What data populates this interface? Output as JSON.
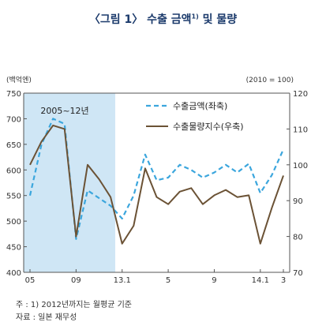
{
  "title": "〈그림 1〉 수출 금액",
  "title_sup": "1)",
  "title_tail": " 및 물량",
  "chart_data": {
    "type": "line",
    "left_unit": "(백억엔)",
    "right_unit": "(2010 = 100)",
    "shaded_label": "2005~12년",
    "x_tick_labels": [
      "05",
      "09",
      "13.1",
      "5",
      "9",
      "14.1",
      "3"
    ],
    "y_left": {
      "min": 400,
      "max": 750,
      "ticks": [
        400,
        450,
        500,
        550,
        600,
        650,
        700,
        750
      ]
    },
    "y_right": {
      "min": 70,
      "max": 120,
      "ticks": [
        70,
        80,
        90,
        100,
        110,
        120
      ]
    },
    "legend": [
      "수출금액(좌축)",
      "수출물량지수(우축)"
    ],
    "series": [
      {
        "name": "수출금액(좌축)",
        "axis": "left",
        "style": "dashed",
        "color": "#3ba6dd",
        "values": [
          550,
          650,
          700,
          690,
          465,
          560,
          545,
          530,
          505,
          550,
          630,
          580,
          585,
          610,
          600,
          585,
          595,
          610,
          595,
          612,
          555,
          590,
          640
        ]
      },
      {
        "name": "수출물량지수(우축)",
        "axis": "right",
        "style": "solid",
        "color": "#6b5235",
        "values": [
          100,
          106.5,
          111,
          110,
          80,
          100,
          96,
          91,
          78,
          83,
          99,
          91,
          89,
          92.5,
          93.5,
          89,
          91.5,
          93,
          91,
          91.5,
          78,
          88,
          97
        ]
      }
    ]
  },
  "notes": {
    "note1": "주 : 1) 2012년까지는 월평균 기준",
    "source": "자료 : 일본 재무성"
  }
}
